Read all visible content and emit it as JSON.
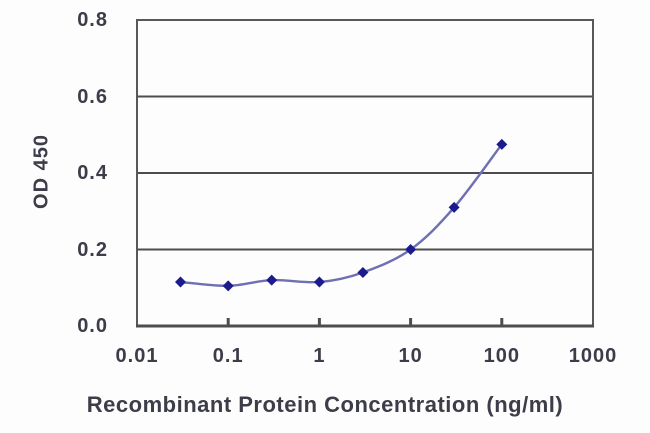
{
  "chart_data": {
    "type": "line",
    "title": "",
    "xlabel": "Recombinant Protein Concentration (ng/ml)",
    "ylabel": "OD 450",
    "x_scale": "log",
    "xlim": [
      0.01,
      1000
    ],
    "ylim": [
      0,
      0.8
    ],
    "x_ticks": [
      {
        "value": 0.01,
        "label": "0.01"
      },
      {
        "value": 0.1,
        "label": "0.1"
      },
      {
        "value": 1,
        "label": "1"
      },
      {
        "value": 10,
        "label": "10"
      },
      {
        "value": 100,
        "label": "100"
      },
      {
        "value": 1000,
        "label": "1000"
      }
    ],
    "y_ticks": [
      {
        "value": 0.0,
        "label": "0.0"
      },
      {
        "value": 0.2,
        "label": "0.2"
      },
      {
        "value": 0.4,
        "label": "0.4"
      },
      {
        "value": 0.6,
        "label": "0.6"
      },
      {
        "value": 0.8,
        "label": "0.8"
      }
    ],
    "y_gridlines": [
      0.2,
      0.4,
      0.6
    ],
    "grid": "horizontal-only",
    "legend": "none",
    "series": [
      {
        "name": "OD 450 vs concentration",
        "marker": "diamond",
        "x": [
          0.03,
          0.1,
          0.3,
          1,
          3,
          10,
          30,
          100
        ],
        "y": [
          0.115,
          0.105,
          0.12,
          0.115,
          0.14,
          0.2,
          0.31,
          0.475
        ]
      }
    ],
    "colors": {
      "line": "#6f6fb4",
      "marker": "#1b1b8e",
      "gridline": "#4d4d4f",
      "axis_border": "#58585a",
      "text": "#3d3d4a"
    }
  }
}
